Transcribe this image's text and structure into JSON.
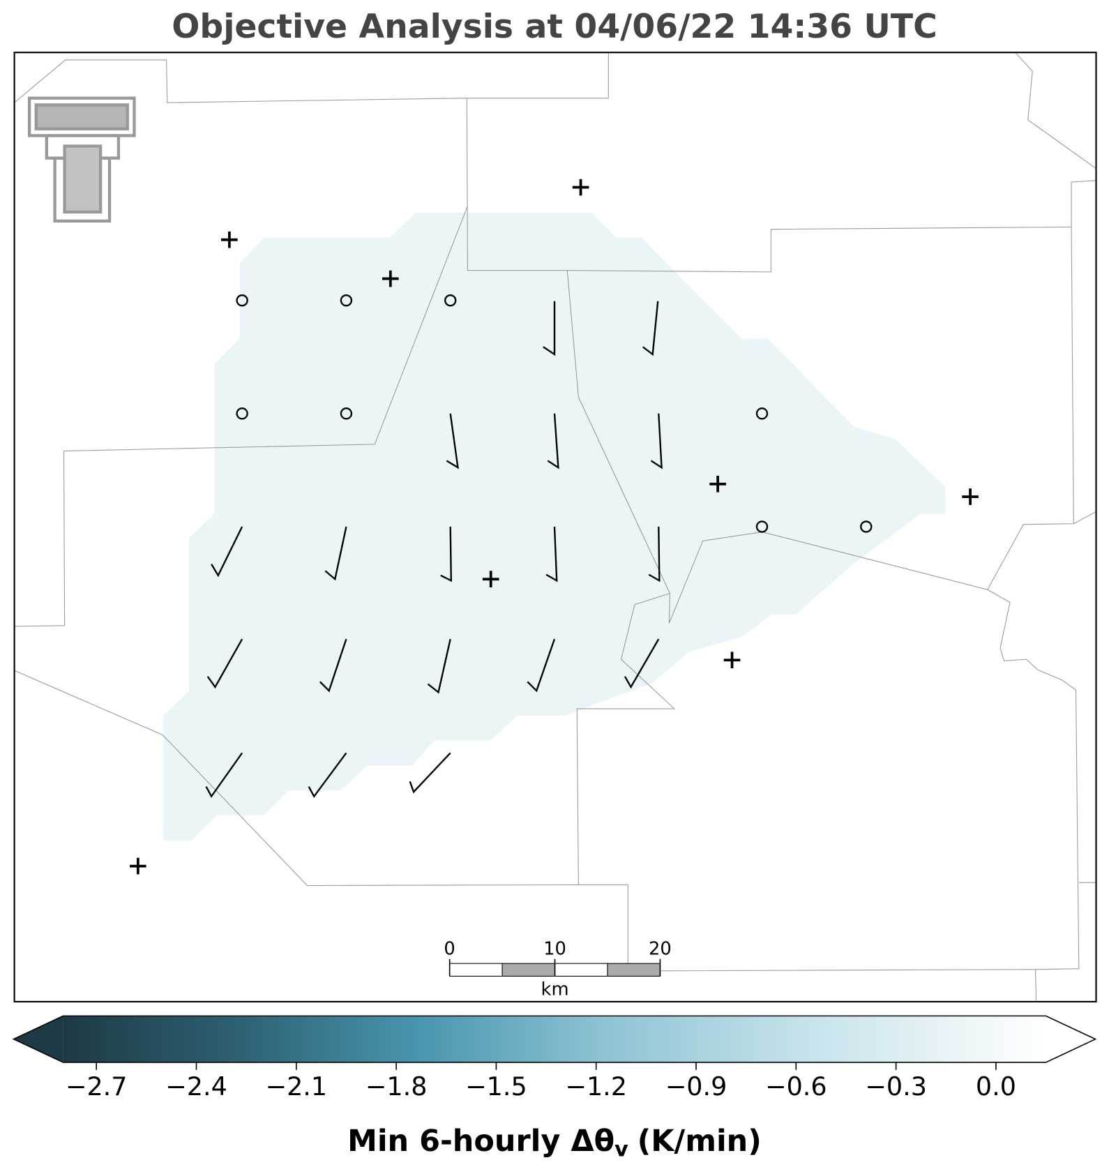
{
  "title": "Objective Analysis at 04/06/22 14:36 UTC",
  "colorbar": {
    "label": {
      "main": "Min 6-hourly Δθ",
      "subscript": "v",
      "unit": "(K/min)"
    },
    "clim": [
      -2.8,
      0.15
    ],
    "ticks": [
      {
        "value": -2.7,
        "label": "−2.7"
      },
      {
        "value": -2.4,
        "label": "−2.4"
      },
      {
        "value": -2.1,
        "label": "−2.1"
      },
      {
        "value": -1.8,
        "label": "−1.8"
      },
      {
        "value": -1.5,
        "label": "−1.5"
      },
      {
        "value": -1.2,
        "label": "−1.2"
      },
      {
        "value": -0.9,
        "label": "−0.9"
      },
      {
        "value": -0.6,
        "label": "−0.6"
      },
      {
        "value": -0.3,
        "label": "−0.3"
      },
      {
        "value": 0.0,
        "label": "0.0"
      }
    ]
  },
  "scalebar": {
    "ticks": [
      0,
      10,
      20
    ],
    "unit": "km"
  }
}
